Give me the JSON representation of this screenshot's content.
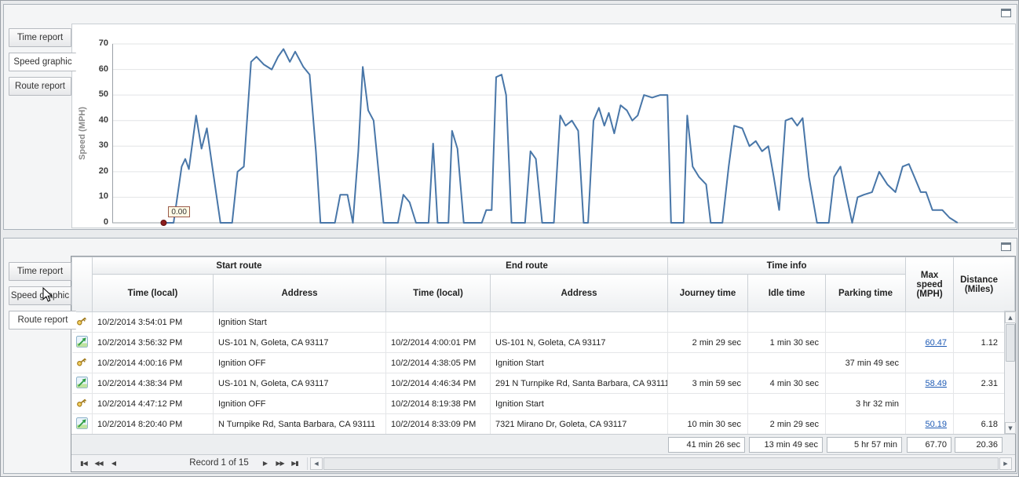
{
  "panels": {
    "top": {
      "tabs": [
        {
          "label": "Time report",
          "active": false
        },
        {
          "label": "Speed graphic",
          "active": true
        },
        {
          "label": "Route report",
          "active": false
        }
      ]
    },
    "bottom": {
      "tabs": [
        {
          "label": "Time report",
          "active": false
        },
        {
          "label": "Speed graphic",
          "active": false
        },
        {
          "label": "Route report",
          "active": true
        }
      ]
    }
  },
  "chart_data": {
    "type": "line",
    "title": "",
    "xlabel": "",
    "ylabel": "Speed (MPH)",
    "ylim": [
      0,
      70
    ],
    "yticks": [
      0,
      10,
      20,
      30,
      40,
      50,
      60,
      70
    ],
    "grid": true,
    "legend": false,
    "annotation": {
      "label": "0.00",
      "x": 5.7,
      "y": 0
    },
    "series": [
      {
        "name": "Speed (MPH)",
        "color": "#4876a8",
        "points": [
          [
            5.7,
            0
          ],
          [
            6.8,
            0
          ],
          [
            7.7,
            22
          ],
          [
            8.1,
            25
          ],
          [
            8.5,
            21
          ],
          [
            9.3,
            42
          ],
          [
            9.9,
            29
          ],
          [
            10.5,
            37
          ],
          [
            11.1,
            22
          ],
          [
            12.0,
            0
          ],
          [
            13.3,
            0
          ],
          [
            13.9,
            20
          ],
          [
            14.6,
            22
          ],
          [
            15.4,
            63
          ],
          [
            16.0,
            65
          ],
          [
            16.8,
            62
          ],
          [
            17.7,
            60
          ],
          [
            18.4,
            65
          ],
          [
            19.0,
            68
          ],
          [
            19.7,
            63
          ],
          [
            20.3,
            67
          ],
          [
            21.2,
            61
          ],
          [
            21.9,
            58
          ],
          [
            22.6,
            28
          ],
          [
            23.1,
            0
          ],
          [
            24.7,
            0
          ],
          [
            25.3,
            11
          ],
          [
            26.1,
            11
          ],
          [
            26.7,
            0
          ],
          [
            27.3,
            28
          ],
          [
            27.8,
            61
          ],
          [
            28.4,
            44
          ],
          [
            29.0,
            40
          ],
          [
            30.1,
            0
          ],
          [
            31.7,
            0
          ],
          [
            32.3,
            11
          ],
          [
            33.0,
            8
          ],
          [
            33.7,
            0
          ],
          [
            35.1,
            0
          ],
          [
            35.6,
            31
          ],
          [
            36.1,
            0
          ],
          [
            37.3,
            0
          ],
          [
            37.7,
            36
          ],
          [
            38.3,
            29
          ],
          [
            39.0,
            0
          ],
          [
            41.0,
            0
          ],
          [
            41.5,
            5
          ],
          [
            42.1,
            5
          ],
          [
            42.6,
            57
          ],
          [
            43.2,
            58
          ],
          [
            43.7,
            50
          ],
          [
            44.3,
            0
          ],
          [
            45.8,
            0
          ],
          [
            46.4,
            28
          ],
          [
            47.0,
            25
          ],
          [
            47.7,
            0
          ],
          [
            49.0,
            0
          ],
          [
            49.7,
            42
          ],
          [
            50.3,
            38
          ],
          [
            51.0,
            40
          ],
          [
            51.7,
            36
          ],
          [
            52.3,
            0
          ],
          [
            52.8,
            0
          ],
          [
            53.4,
            40
          ],
          [
            54.0,
            45
          ],
          [
            54.6,
            38
          ],
          [
            55.1,
            43
          ],
          [
            55.7,
            35
          ],
          [
            56.4,
            46
          ],
          [
            57.1,
            44
          ],
          [
            57.7,
            40
          ],
          [
            58.3,
            42
          ],
          [
            59.0,
            50
          ],
          [
            59.9,
            49
          ],
          [
            60.8,
            50
          ],
          [
            61.6,
            50
          ],
          [
            62.0,
            0
          ],
          [
            63.4,
            0
          ],
          [
            63.8,
            42
          ],
          [
            64.4,
            22
          ],
          [
            65.1,
            18
          ],
          [
            65.9,
            15
          ],
          [
            66.4,
            0
          ],
          [
            67.7,
            0
          ],
          [
            68.4,
            22
          ],
          [
            69.0,
            38
          ],
          [
            69.9,
            37
          ],
          [
            70.7,
            30
          ],
          [
            71.4,
            32
          ],
          [
            72.1,
            28
          ],
          [
            72.8,
            30
          ],
          [
            73.4,
            18
          ],
          [
            74.0,
            5
          ],
          [
            74.7,
            40
          ],
          [
            75.4,
            41
          ],
          [
            76.0,
            38
          ],
          [
            76.6,
            41
          ],
          [
            77.3,
            18
          ],
          [
            78.2,
            0
          ],
          [
            79.5,
            0
          ],
          [
            80.1,
            18
          ],
          [
            80.8,
            22
          ],
          [
            81.5,
            10
          ],
          [
            82.1,
            0
          ],
          [
            82.7,
            10
          ],
          [
            83.4,
            11
          ],
          [
            84.3,
            12
          ],
          [
            85.1,
            20
          ],
          [
            86.0,
            15
          ],
          [
            86.9,
            12
          ],
          [
            87.7,
            22
          ],
          [
            88.4,
            23
          ],
          [
            89.0,
            18
          ],
          [
            89.7,
            12
          ],
          [
            90.3,
            12
          ],
          [
            91.0,
            5
          ],
          [
            92.1,
            5
          ],
          [
            92.9,
            2
          ],
          [
            93.8,
            0
          ]
        ]
      }
    ]
  },
  "grid": {
    "column_groups": [
      {
        "label": "Start route"
      },
      {
        "label": "End route"
      },
      {
        "label": "Time info"
      }
    ],
    "columns": {
      "start_time": "Time (local)",
      "start_address": "Address",
      "end_time": "Time (local)",
      "end_address": "Address",
      "journey_time": "Journey time",
      "idle_time": "Idle time",
      "parking_time": "Parking time",
      "max_speed": "Max speed (MPH)",
      "distance": "Distance (Miles)"
    },
    "rows": [
      {
        "icon": "key",
        "start_time": "10/2/2014 3:54:01 PM",
        "start_address": "Ignition Start",
        "end_time": "",
        "end_address": "",
        "journey_time": "",
        "idle_time": "",
        "parking_time": "",
        "max_speed": "",
        "distance": ""
      },
      {
        "icon": "route",
        "start_time": "10/2/2014 3:56:32 PM",
        "start_address": "US-101 N, Goleta, CA 93117",
        "end_time": "10/2/2014 4:00:01 PM",
        "end_address": "US-101 N, Goleta, CA 93117",
        "journey_time": "2 min 29 sec",
        "idle_time": "1 min 30 sec",
        "parking_time": "",
        "max_speed": "60.47",
        "distance": "1.12"
      },
      {
        "icon": "key",
        "start_time": "10/2/2014 4:00:16 PM",
        "start_address": "Ignition OFF",
        "end_time": "10/2/2014 4:38:05 PM",
        "end_address": "Ignition Start",
        "journey_time": "",
        "idle_time": "",
        "parking_time": "37 min 49 sec",
        "max_speed": "",
        "distance": ""
      },
      {
        "icon": "route",
        "start_time": "10/2/2014 4:38:34 PM",
        "start_address": "US-101 N, Goleta, CA 93117",
        "end_time": "10/2/2014 4:46:34 PM",
        "end_address": "291 N Turnpike Rd, Santa Barbara, CA 93111",
        "journey_time": "3 min 59 sec",
        "idle_time": "4 min 30 sec",
        "parking_time": "",
        "max_speed": "58.49",
        "distance": "2.31"
      },
      {
        "icon": "key",
        "start_time": "10/2/2014 4:47:12 PM",
        "start_address": "Ignition OFF",
        "end_time": "10/2/2014 8:19:38 PM",
        "end_address": "Ignition Start",
        "journey_time": "",
        "idle_time": "",
        "parking_time": "3 hr 32 min",
        "max_speed": "",
        "distance": ""
      },
      {
        "icon": "route",
        "start_time": "10/2/2014 8:20:40 PM",
        "start_address": "N Turnpike Rd, Santa Barbara, CA 93111",
        "end_time": "10/2/2014 8:33:09 PM",
        "end_address": "7321 Mirano Dr, Goleta, CA 93117",
        "journey_time": "10 min 30 sec",
        "idle_time": "2 min 29 sec",
        "parking_time": "",
        "max_speed": "50.19",
        "distance": "6.18"
      }
    ],
    "summary": {
      "journey_time": "41 min 26 sec",
      "idle_time": "13 min 49 sec",
      "parking_time": "5 hr 57 min",
      "max_speed": "67.70",
      "distance": "20.36"
    },
    "pager": {
      "status": "Record 1 of 15",
      "first": "▮◀",
      "prev_page": "◀◀",
      "prev": "◀",
      "next": "▶",
      "next_page": "▶▶",
      "last": "▶▮"
    },
    "scroll": {
      "up": "▲",
      "down": "▼",
      "left": "◀",
      "right": "▶"
    }
  }
}
